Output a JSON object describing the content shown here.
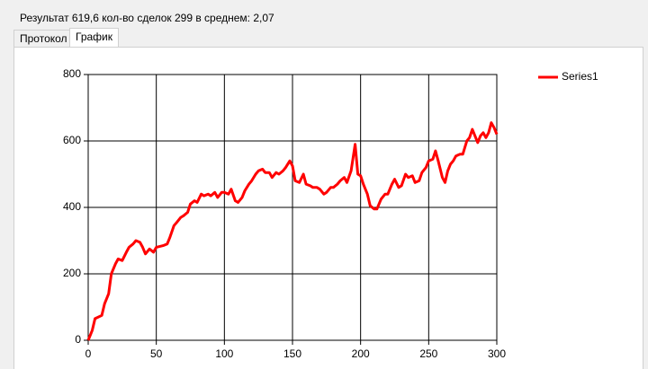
{
  "status_text": "Результат 619,6 кол-во сделок 299 в среднем: 2,07",
  "tabs": [
    "Протокол",
    "График"
  ],
  "chart_data": {
    "type": "line",
    "x": [
      0,
      3,
      5,
      10,
      12,
      15,
      17,
      20,
      22,
      25,
      28,
      30,
      33,
      35,
      38,
      40,
      42,
      45,
      48,
      50,
      55,
      58,
      60,
      63,
      65,
      68,
      70,
      73,
      75,
      78,
      80,
      83,
      85,
      88,
      90,
      93,
      95,
      98,
      100,
      103,
      105,
      108,
      110,
      113,
      115,
      118,
      120,
      123,
      125,
      128,
      130,
      133,
      135,
      138,
      140,
      143,
      145,
      148,
      150,
      152,
      155,
      158,
      160,
      163,
      165,
      168,
      170,
      173,
      175,
      178,
      180,
      183,
      185,
      188,
      190,
      193,
      196,
      198,
      200,
      202,
      205,
      207,
      210,
      212,
      215,
      218,
      220,
      223,
      225,
      228,
      230,
      233,
      235,
      238,
      240,
      243,
      245,
      248,
      250,
      253,
      255,
      257,
      260,
      262,
      264,
      266,
      268,
      270,
      273,
      275,
      278,
      280,
      282,
      284,
      286,
      288,
      290,
      292,
      294,
      296,
      298,
      300
    ],
    "series": [
      {
        "name": "Series1",
        "color": "#ff0000",
        "values": [
          0,
          30,
          65,
          75,
          110,
          140,
          200,
          230,
          245,
          240,
          265,
          280,
          290,
          300,
          295,
          280,
          260,
          275,
          265,
          280,
          285,
          290,
          310,
          345,
          355,
          370,
          375,
          385,
          410,
          420,
          415,
          440,
          435,
          440,
          435,
          445,
          430,
          445,
          445,
          440,
          455,
          420,
          415,
          430,
          450,
          470,
          480,
          500,
          510,
          515,
          505,
          505,
          490,
          505,
          500,
          510,
          520,
          540,
          525,
          480,
          475,
          500,
          470,
          465,
          460,
          460,
          455,
          440,
          445,
          460,
          460,
          470,
          480,
          490,
          475,
          510,
          590,
          500,
          495,
          470,
          440,
          405,
          395,
          395,
          425,
          440,
          440,
          470,
          485,
          460,
          465,
          500,
          490,
          495,
          475,
          480,
          505,
          520,
          540,
          545,
          570,
          540,
          490,
          475,
          510,
          530,
          540,
          555,
          560,
          560,
          600,
          610,
          635,
          615,
          595,
          615,
          625,
          610,
          625,
          655,
          640,
          620
        ]
      }
    ],
    "xlim": [
      0,
      300
    ],
    "xticks": [
      0,
      50,
      100,
      150,
      200,
      250,
      300
    ],
    "ylim": [
      0,
      800
    ],
    "yticks": [
      0,
      200,
      400,
      600,
      800
    ],
    "grid": true,
    "legend": "top-right"
  }
}
